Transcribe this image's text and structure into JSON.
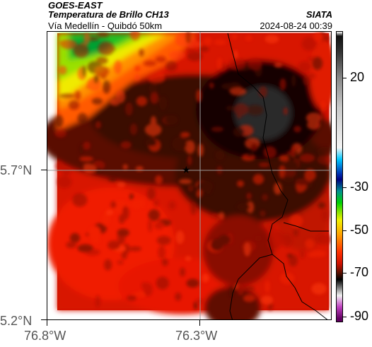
{
  "header": {
    "satellite": "GOES-EAST",
    "product": "Temperatura de Brillo CH13",
    "route": "Vía Medellín - Quibdó 50km",
    "org": "SIATA",
    "datetime": "2024-08-24 00:39"
  },
  "axes": {
    "lat_ticks": [
      "5.7°N",
      "5.2°N"
    ],
    "lon_ticks": [
      "76.8°W",
      "76.3°W"
    ]
  },
  "colorbar": {
    "labels": [
      "20",
      "-30",
      "-50",
      "-70",
      "-90"
    ]
  },
  "map": {
    "field": "brightness temperature",
    "marker": "star",
    "colors": {
      "cold": "#120606",
      "warm": "#e01600",
      "hot_green": "#20c020",
      "hot_yellow": "#f0f000",
      "border": "#000000"
    }
  }
}
